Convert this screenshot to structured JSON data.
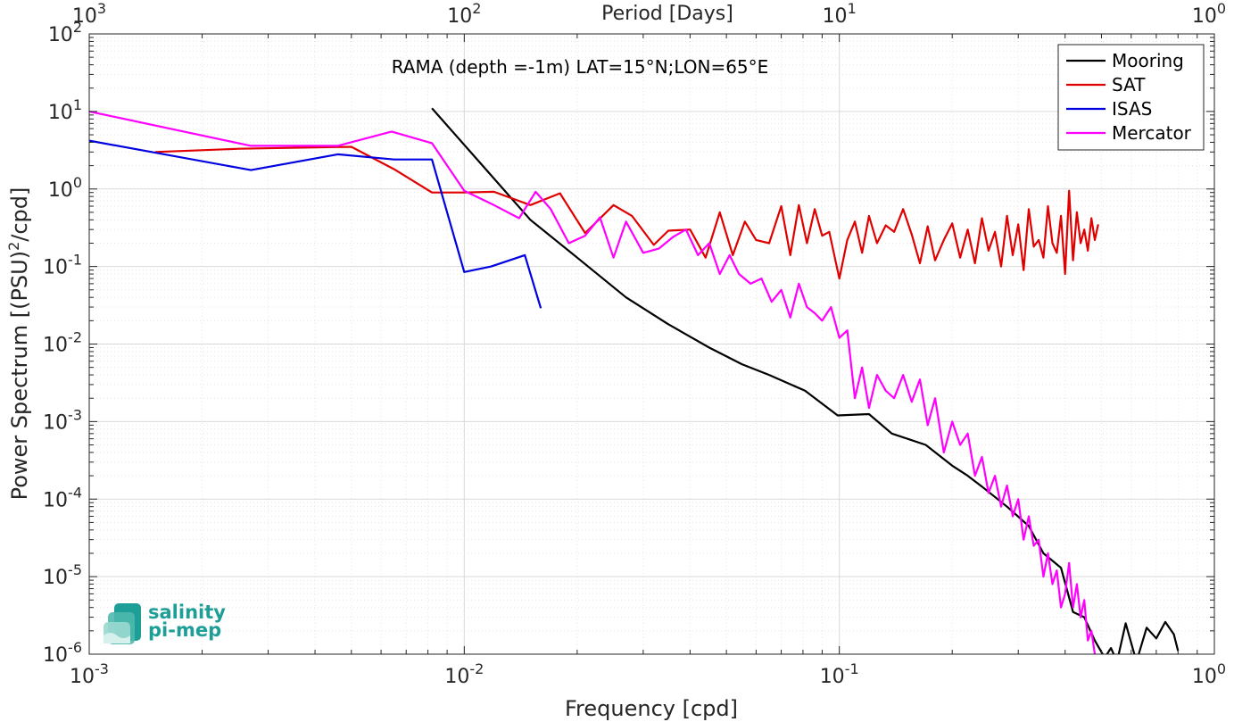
{
  "chart_data": {
    "type": "line",
    "title": "RAMA (depth =-1m) LAT=15°N;LON=65°E",
    "xlabel": "Frequency [cpd]",
    "ylabel_main": "Power Spectrum [(PSU)",
    "ylabel_sup": "2",
    "ylabel_tail": "/cpd]",
    "top_xlabel": "Period [Days]",
    "x_scale": "log",
    "y_scale": "log",
    "xlim": [
      0.001,
      1
    ],
    "ylim": [
      1e-06,
      100
    ],
    "grid": true,
    "legend_position": "top-right",
    "x_tick_labels": [
      {
        "value": 0.001,
        "base": "10",
        "exp": "-3"
      },
      {
        "value": 0.01,
        "base": "10",
        "exp": "-2"
      },
      {
        "value": 0.1,
        "base": "10",
        "exp": "-1"
      },
      {
        "value": 1,
        "base": "10",
        "exp": "0"
      }
    ],
    "top_tick_labels": [
      {
        "value": 0.001,
        "base": "10",
        "exp": "3"
      },
      {
        "value": 0.01,
        "base": "10",
        "exp": "2"
      },
      {
        "value": 0.1,
        "base": "10",
        "exp": "1"
      },
      {
        "value": 1,
        "base": "10",
        "exp": "0"
      }
    ],
    "y_tick_labels": [
      {
        "value": 100,
        "base": "10",
        "exp": "2"
      },
      {
        "value": 10,
        "base": "10",
        "exp": "1"
      },
      {
        "value": 1,
        "base": "10",
        "exp": "0"
      },
      {
        "value": 0.1,
        "base": "10",
        "exp": "-1"
      },
      {
        "value": 0.01,
        "base": "10",
        "exp": "-2"
      },
      {
        "value": 0.001,
        "base": "10",
        "exp": "-3"
      },
      {
        "value": 0.0001,
        "base": "10",
        "exp": "-4"
      },
      {
        "value": 1e-05,
        "base": "10",
        "exp": "-5"
      },
      {
        "value": 1e-06,
        "base": "10",
        "exp": "-6"
      }
    ],
    "series": [
      {
        "name": "Mooring",
        "color": "#000000",
        "x": [
          0.0082,
          0.011,
          0.015,
          0.02,
          0.027,
          0.035,
          0.045,
          0.055,
          0.065,
          0.081,
          0.099,
          0.12,
          0.138,
          0.17,
          0.2,
          0.22,
          0.24,
          0.28,
          0.32,
          0.35,
          0.39,
          0.42,
          0.45,
          0.48,
          0.51,
          0.53,
          0.55,
          0.58,
          0.62,
          0.66,
          0.7,
          0.74,
          0.78,
          0.8
        ],
        "y": [
          11,
          2.2,
          0.4,
          0.13,
          0.04,
          0.018,
          0.009,
          0.0055,
          0.004,
          0.0025,
          0.0012,
          0.00125,
          0.0007,
          0.0005,
          0.00027,
          0.0002,
          0.000145,
          8e-05,
          4.5e-05,
          2e-05,
          1.3e-05,
          3.5e-06,
          3e-06,
          1.5e-06,
          9e-07,
          1.2e-06,
          8e-07,
          2.5e-06,
          8e-07,
          2.2e-06,
          1.6e-06,
          2.6e-06,
          1.8e-06,
          1.1e-06
        ]
      },
      {
        "name": "SAT",
        "color": "#e00000",
        "x": [
          0.0015,
          0.0025,
          0.005,
          0.0065,
          0.0082,
          0.01,
          0.012,
          0.015,
          0.018,
          0.021,
          0.025,
          0.028,
          0.032,
          0.035,
          0.04,
          0.044,
          0.048,
          0.052,
          0.056,
          0.06,
          0.065,
          0.07,
          0.074,
          0.078,
          0.082,
          0.086,
          0.09,
          0.094,
          0.1,
          0.105,
          0.11,
          0.115,
          0.12,
          0.126,
          0.133,
          0.14,
          0.148,
          0.156,
          0.164,
          0.172,
          0.18,
          0.19,
          0.2,
          0.21,
          0.22,
          0.23,
          0.24,
          0.25,
          0.26,
          0.27,
          0.28,
          0.29,
          0.3,
          0.31,
          0.32,
          0.33,
          0.34,
          0.35,
          0.36,
          0.37,
          0.38,
          0.39,
          0.4,
          0.41,
          0.42,
          0.43,
          0.44,
          0.45,
          0.46,
          0.47,
          0.48,
          0.49
        ],
        "y": [
          3.0,
          3.3,
          3.5,
          1.8,
          0.9,
          0.9,
          0.92,
          0.62,
          0.88,
          0.27,
          0.62,
          0.45,
          0.19,
          0.29,
          0.3,
          0.13,
          0.5,
          0.14,
          0.38,
          0.22,
          0.2,
          0.6,
          0.14,
          0.62,
          0.2,
          0.55,
          0.25,
          0.28,
          0.07,
          0.22,
          0.38,
          0.15,
          0.45,
          0.2,
          0.34,
          0.28,
          0.55,
          0.26,
          0.11,
          0.33,
          0.12,
          0.22,
          0.36,
          0.13,
          0.3,
          0.11,
          0.42,
          0.16,
          0.28,
          0.1,
          0.45,
          0.14,
          0.35,
          0.09,
          0.55,
          0.18,
          0.22,
          0.13,
          0.6,
          0.2,
          0.15,
          0.45,
          0.08,
          0.95,
          0.12,
          0.5,
          0.2,
          0.3,
          0.16,
          0.42,
          0.22,
          0.35
        ]
      },
      {
        "name": "ISAS",
        "color": "#0000e0",
        "x": [
          0.001,
          0.0027,
          0.0046,
          0.0065,
          0.0082,
          0.01,
          0.0118,
          0.0145,
          0.016
        ],
        "y": [
          4.2,
          1.75,
          2.8,
          2.4,
          2.4,
          0.085,
          0.1,
          0.14,
          0.029
        ]
      },
      {
        "name": "Mercator",
        "color": "#ff00ff",
        "x": [
          0.001,
          0.0027,
          0.0046,
          0.0064,
          0.0082,
          0.01,
          0.012,
          0.014,
          0.0155,
          0.017,
          0.019,
          0.021,
          0.023,
          0.025,
          0.027,
          0.03,
          0.033,
          0.036,
          0.039,
          0.042,
          0.045,
          0.048,
          0.051,
          0.054,
          0.058,
          0.062,
          0.066,
          0.07,
          0.074,
          0.078,
          0.082,
          0.086,
          0.09,
          0.095,
          0.1,
          0.105,
          0.11,
          0.115,
          0.12,
          0.126,
          0.133,
          0.14,
          0.148,
          0.156,
          0.164,
          0.172,
          0.18,
          0.19,
          0.2,
          0.21,
          0.22,
          0.23,
          0.24,
          0.25,
          0.26,
          0.27,
          0.28,
          0.29,
          0.3,
          0.31,
          0.32,
          0.33,
          0.34,
          0.35,
          0.36,
          0.37,
          0.38,
          0.39,
          0.4,
          0.41,
          0.42,
          0.43,
          0.44,
          0.45,
          0.46,
          0.47,
          0.48,
          0.49
        ],
        "y": [
          10,
          3.6,
          3.6,
          5.5,
          3.9,
          0.95,
          0.62,
          0.42,
          0.92,
          0.55,
          0.2,
          0.25,
          0.43,
          0.13,
          0.38,
          0.15,
          0.17,
          0.24,
          0.3,
          0.14,
          0.2,
          0.08,
          0.14,
          0.08,
          0.06,
          0.07,
          0.035,
          0.05,
          0.022,
          0.06,
          0.03,
          0.025,
          0.02,
          0.03,
          0.012,
          0.015,
          0.002,
          0.005,
          0.0015,
          0.004,
          0.0025,
          0.002,
          0.004,
          0.0018,
          0.0035,
          0.0009,
          0.002,
          0.0004,
          0.001,
          0.0005,
          0.0007,
          0.0002,
          0.00035,
          0.00012,
          0.0002,
          8e-05,
          0.00015,
          6e-05,
          0.0001,
          3e-05,
          6e-05,
          2.5e-05,
          3e-05,
          1e-05,
          2e-05,
          8e-06,
          1.2e-05,
          4e-06,
          6e-06,
          1.5e-05,
          4e-06,
          8e-06,
          3e-06,
          5e-06,
          1.5e-06,
          2e-06,
          1e-06,
          8e-07
        ]
      }
    ]
  },
  "logo": {
    "line1": "salinity",
    "line2": "pi-mep",
    "color": "#1d9e96"
  }
}
